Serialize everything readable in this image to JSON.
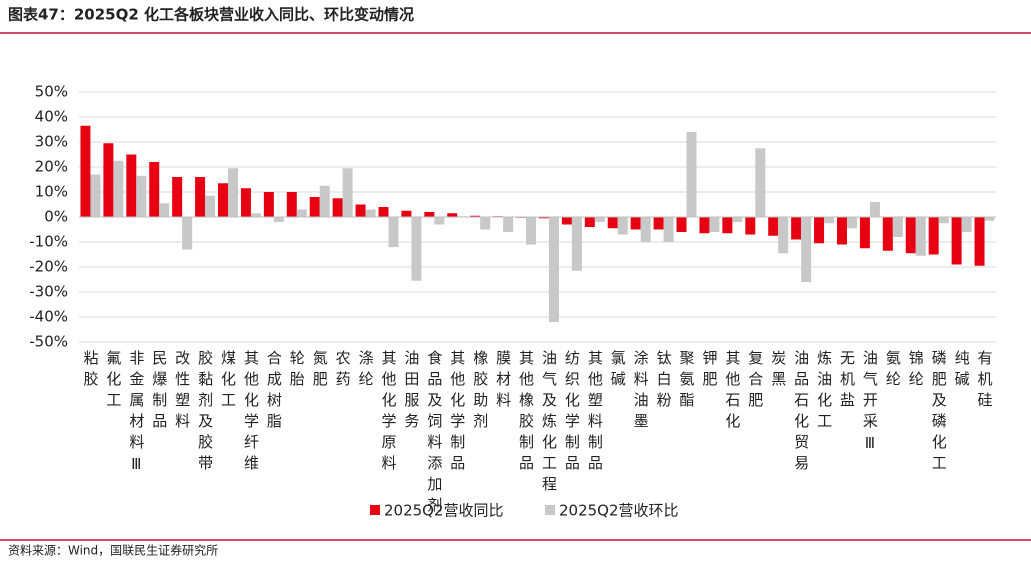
{
  "chart_data": {
    "type": "bar",
    "title": "图表47：2025Q2 化工各板块营业收入同比、环比变动情况",
    "source": "资料来源：Wind，国联民生证券研究所",
    "categories": [
      "粘胶",
      "氟化工",
      "非金属材料Ⅲ",
      "民爆制品",
      "改性塑料",
      "胶黏剂及胶带",
      "煤化工",
      "其他化学纤维",
      "合成树脂",
      "轮胎",
      "氮肥",
      "农药",
      "涤纶",
      "其他化学原料",
      "油田服务",
      "食品及饲料添加剂",
      "其他化学制品",
      "橡胶助剂",
      "膜材料",
      "其他橡胶制品",
      "油气及炼化工程",
      "纺织化学制品",
      "其他塑料制品",
      "氯碱",
      "涂料油墨",
      "钛白粉",
      "聚氨酯",
      "钾肥",
      "其他石化",
      "复合肥",
      "炭黑",
      "油品石化贸易",
      "炼油化工",
      "无机盐",
      "油气开采Ⅲ",
      "氨纶",
      "锦纶",
      "磷肥及磷化工",
      "纯碱",
      "有机硅"
    ],
    "series": [
      {
        "name": "2025Q2营收同比",
        "color": "#e60012",
        "values": [
          36.5,
          29.5,
          25,
          22,
          16,
          16,
          13.5,
          11.5,
          10,
          10,
          8,
          7.5,
          5,
          4,
          2.5,
          2,
          1.5,
          0.5,
          0.3,
          -0.3,
          -0.5,
          -3,
          -4,
          -4.5,
          -5,
          -5,
          -6,
          -6.5,
          -6.5,
          -7,
          -7.5,
          -9,
          -10.5,
          -11,
          -12.5,
          -13.5,
          -14.5,
          -15,
          -19,
          -19.5
        ]
      },
      {
        "name": "2025Q2营收环比",
        "color": "#c8c8c8",
        "values": [
          17,
          22.5,
          16.5,
          5.5,
          -13,
          8.5,
          19.5,
          1.5,
          -2,
          3,
          12.5,
          19.5,
          3,
          -12,
          -25.5,
          -3,
          0.3,
          -5,
          -6,
          -11,
          -42,
          -21.5,
          -2,
          -7,
          -10,
          -10,
          34,
          -6,
          -2,
          27.5,
          -14.5,
          -26,
          -2.5,
          -4.5,
          6,
          -8,
          -15.5,
          -2.5,
          -6,
          -1.5
        ]
      }
    ],
    "ylim": [
      -50,
      50
    ],
    "yticks": [
      {
        "value": -50,
        "label": "-50%"
      },
      {
        "value": -40,
        "label": "-40%"
      },
      {
        "value": -30,
        "label": "-30%"
      },
      {
        "value": -20,
        "label": "-20%"
      },
      {
        "value": -10,
        "label": "-10%"
      },
      {
        "value": 0,
        "label": "0%"
      },
      {
        "value": 10,
        "label": "10%"
      },
      {
        "value": 20,
        "label": "20%"
      },
      {
        "value": 30,
        "label": "30%"
      },
      {
        "value": 40,
        "label": "40%"
      },
      {
        "value": 50,
        "label": "50%"
      }
    ],
    "grid": true
  }
}
